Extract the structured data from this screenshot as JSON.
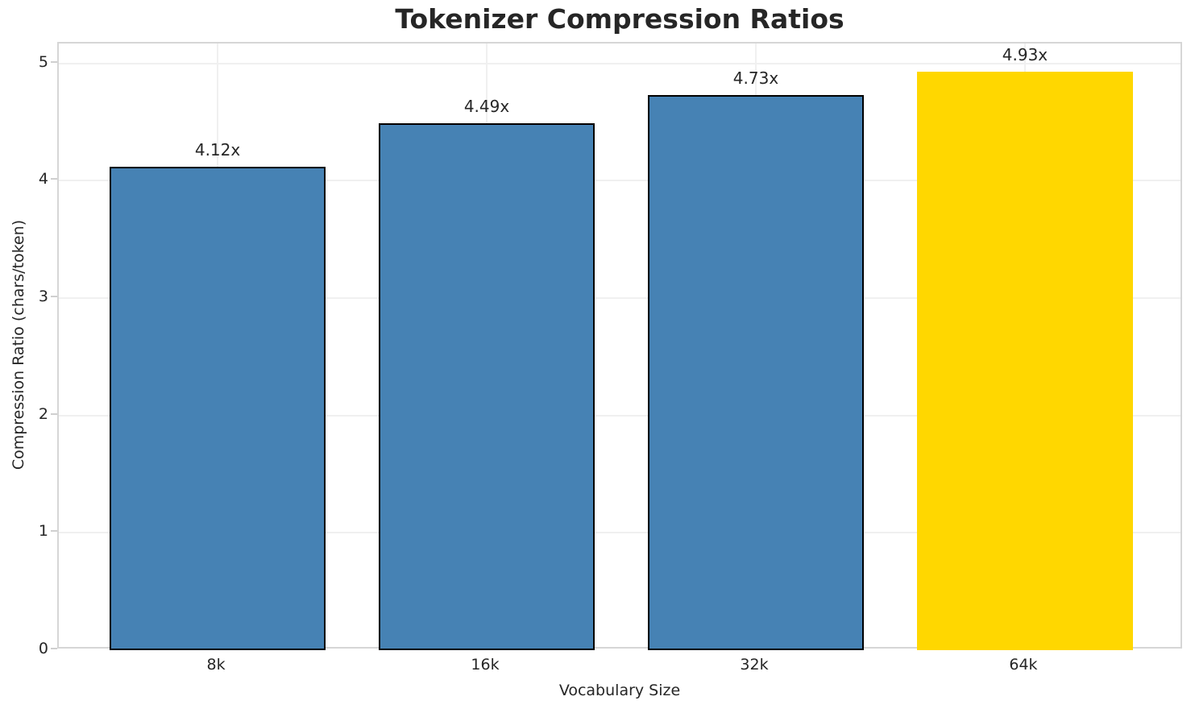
{
  "chart_data": {
    "type": "bar",
    "title": "Tokenizer Compression Ratios",
    "xlabel": "Vocabulary Size",
    "ylabel": "Compression Ratio (chars/token)",
    "categories": [
      "8k",
      "16k",
      "32k",
      "64k"
    ],
    "values": [
      4.12,
      4.49,
      4.73,
      4.93
    ],
    "bar_labels": [
      "4.12x",
      "4.49x",
      "4.73x",
      "4.93x"
    ],
    "ytick_labels": [
      "0",
      "1",
      "2",
      "3",
      "4",
      "5"
    ],
    "ytick_values": [
      0,
      1,
      2,
      3,
      4,
      5
    ],
    "ylim": [
      0,
      5.17
    ],
    "grid": true,
    "legend": false,
    "bar_colors": [
      "#4682B4",
      "#4682B4",
      "#4682B4",
      "#FFD700"
    ],
    "bar_edge_colors": [
      "#000000",
      "#000000",
      "#000000",
      "none"
    ],
    "accent_blue": "#4682B4",
    "highlight_gold": "#FFD700",
    "highlight_category": "64k"
  }
}
